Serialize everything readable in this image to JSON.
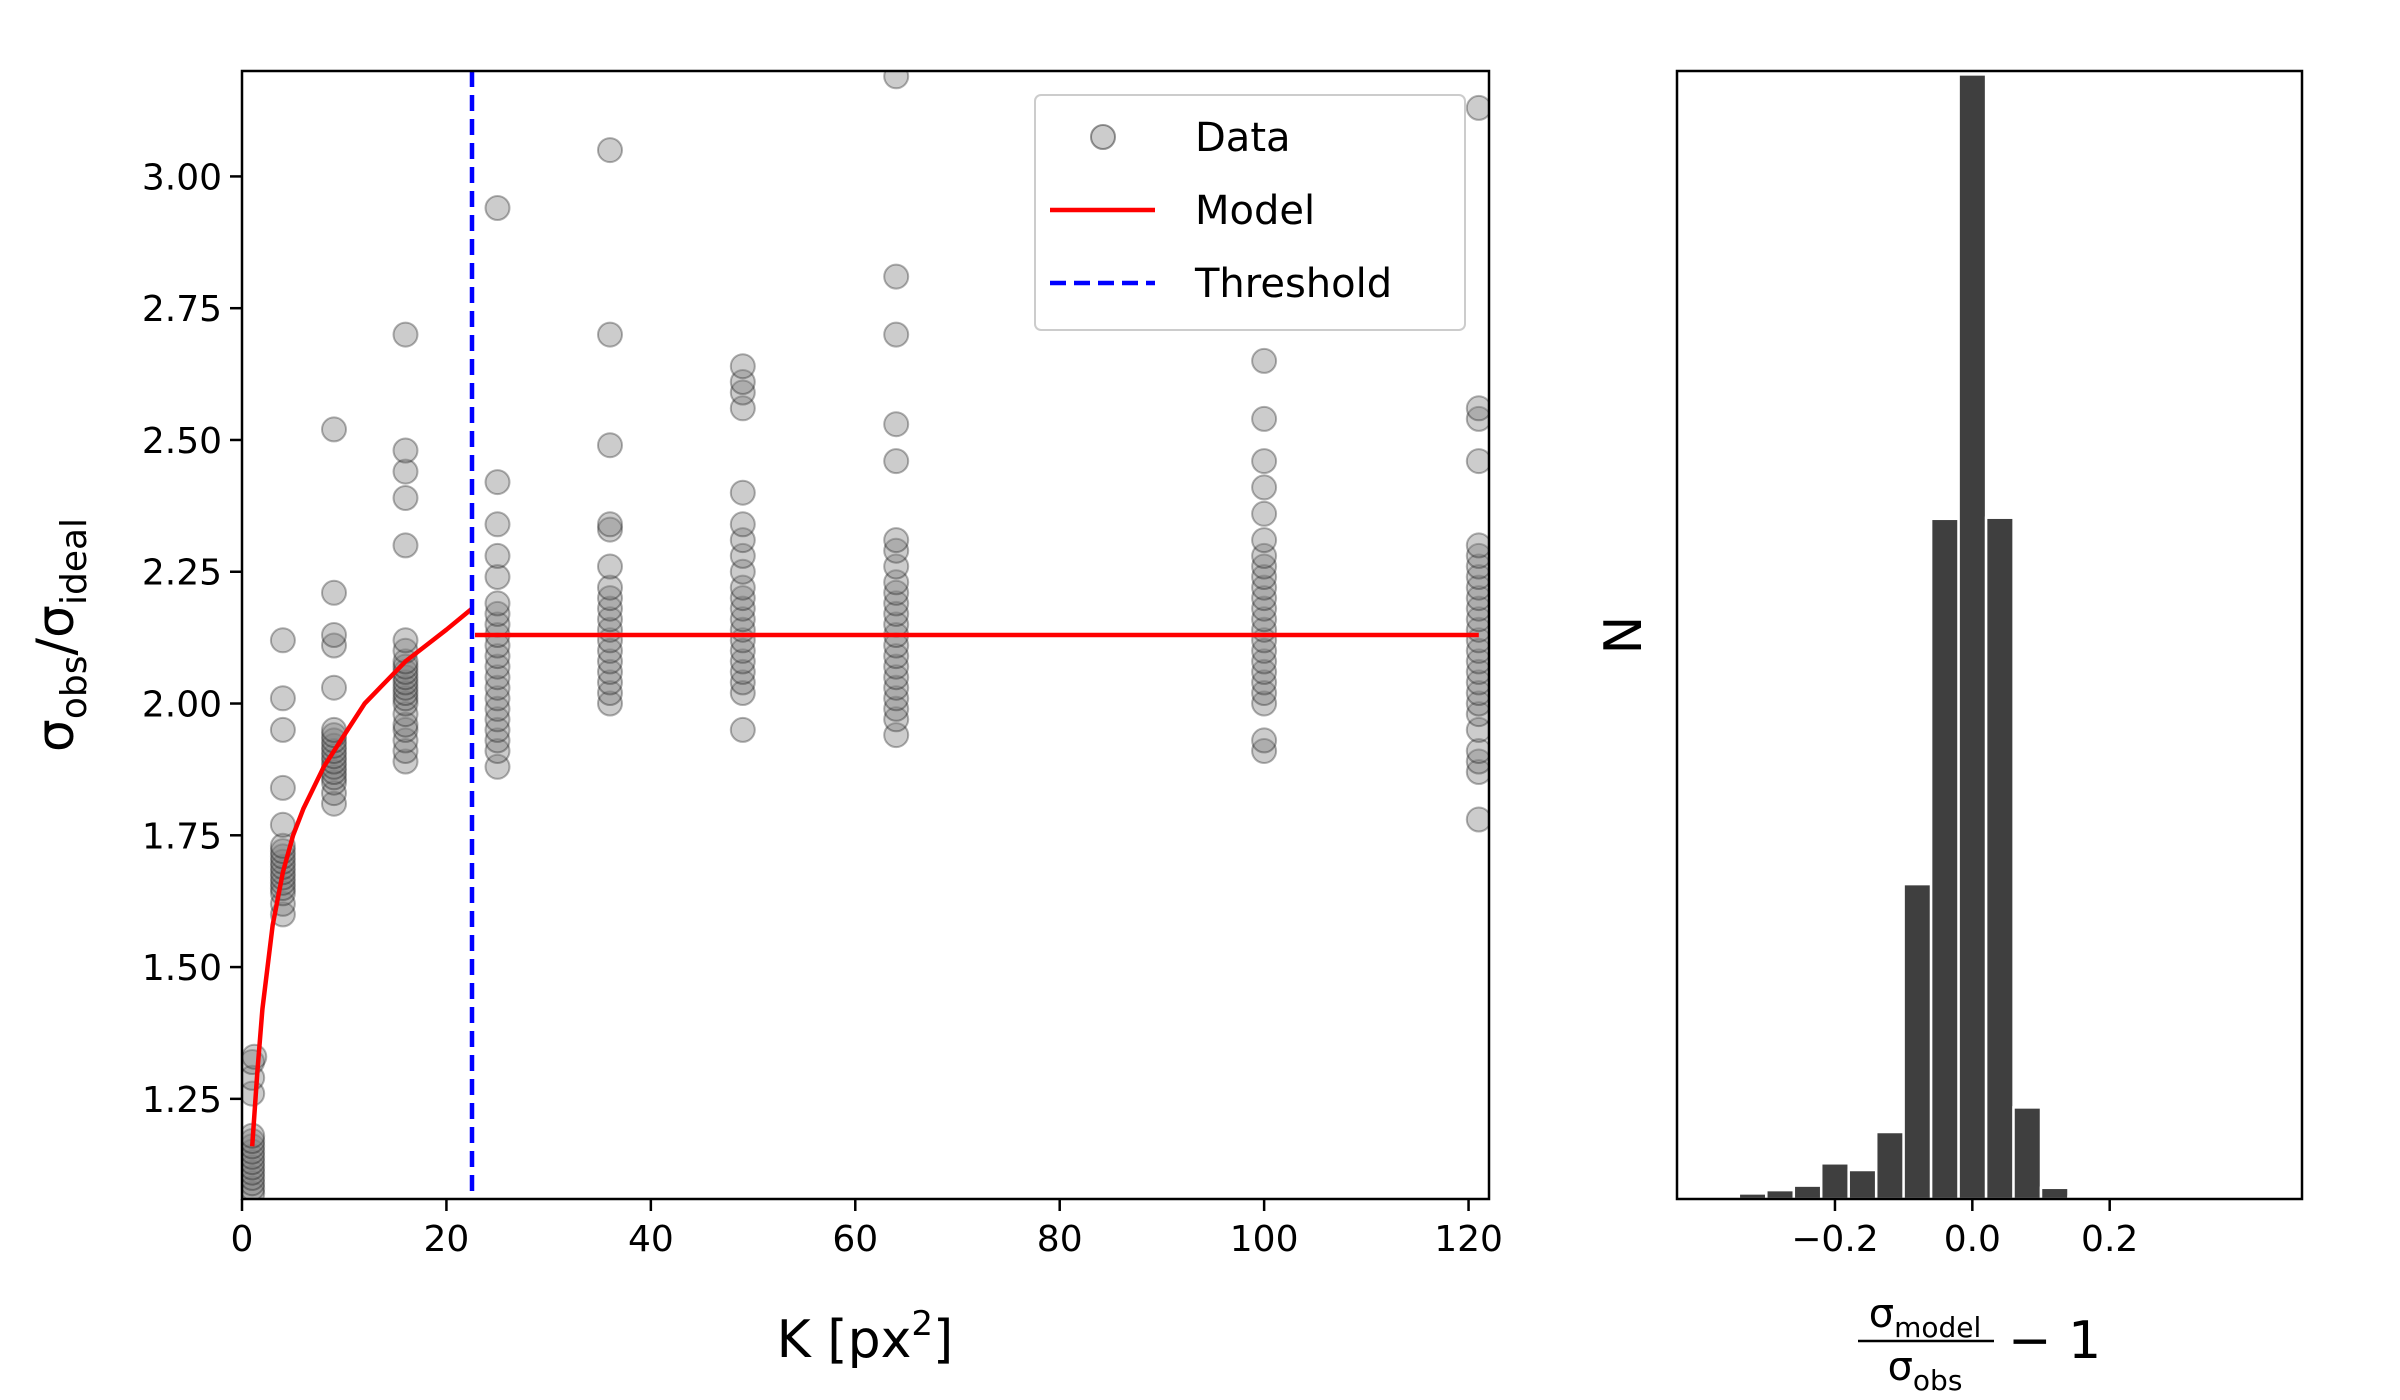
{
  "colors": {
    "data": "#7f7f7f",
    "model": "#ff0000",
    "threshold": "#0000ff",
    "hist": "#3f3f3f"
  },
  "chart_data": [
    {
      "type": "scatter",
      "xlabel_main": "K [px",
      "xlabel_sup": "2",
      "xlabel_close": "]",
      "ylabel_main1": "σ",
      "ylabel_sub1": "obs",
      "ylabel_slash": "/σ",
      "ylabel_sub2": "ideal",
      "xlim": [
        0,
        122
      ],
      "ylim": [
        1.06,
        3.2
      ],
      "x_ticks": [
        0,
        20,
        40,
        60,
        80,
        100,
        120
      ],
      "x_tick_labels": [
        "0",
        "20",
        "40",
        "60",
        "80",
        "100",
        "120"
      ],
      "y_ticks": [
        1.25,
        1.5,
        1.75,
        2.0,
        2.25,
        2.5,
        2.75,
        3.0
      ],
      "y_tick_labels": [
        "1.25",
        "1.50",
        "1.75",
        "2.00",
        "2.25",
        "2.50",
        "2.75",
        "3.00"
      ],
      "legend": {
        "position": "upper right",
        "entries": [
          {
            "label": "Data",
            "kind": "marker"
          },
          {
            "label": "Model",
            "kind": "line"
          },
          {
            "label": "Threshold",
            "kind": "dashed"
          }
        ]
      },
      "series": [
        {
          "name": "Data",
          "kind": "scatter",
          "points": [
            [
              1,
              1.07
            ],
            [
              1,
              1.08
            ],
            [
              1,
              1.09
            ],
            [
              1,
              1.1
            ],
            [
              1,
              1.11
            ],
            [
              1,
              1.12
            ],
            [
              1,
              1.13
            ],
            [
              1,
              1.14
            ],
            [
              1,
              1.15
            ],
            [
              1,
              1.16
            ],
            [
              1,
              1.17
            ],
            [
              1,
              1.18
            ],
            [
              1,
              1.26
            ],
            [
              1,
              1.29
            ],
            [
              1,
              1.32
            ],
            [
              1.2,
              1.33
            ],
            [
              4,
              1.6
            ],
            [
              4,
              1.62
            ],
            [
              4,
              1.64
            ],
            [
              4,
              1.65
            ],
            [
              4,
              1.66
            ],
            [
              4,
              1.67
            ],
            [
              4,
              1.68
            ],
            [
              4,
              1.69
            ],
            [
              4,
              1.7
            ],
            [
              4,
              1.71
            ],
            [
              4,
              1.72
            ],
            [
              4,
              1.73
            ],
            [
              4,
              1.77
            ],
            [
              4,
              1.84
            ],
            [
              4,
              1.95
            ],
            [
              4,
              2.01
            ],
            [
              4,
              2.12
            ],
            [
              9,
              1.81
            ],
            [
              9,
              1.83
            ],
            [
              9,
              1.85
            ],
            [
              9,
              1.86
            ],
            [
              9,
              1.87
            ],
            [
              9,
              1.88
            ],
            [
              9,
              1.89
            ],
            [
              9,
              1.9
            ],
            [
              9,
              1.91
            ],
            [
              9,
              1.92
            ],
            [
              9,
              1.93
            ],
            [
              9,
              1.94
            ],
            [
              9,
              1.95
            ],
            [
              9,
              2.03
            ],
            [
              9,
              2.11
            ],
            [
              9,
              2.13
            ],
            [
              9,
              2.21
            ],
            [
              9,
              2.52
            ],
            [
              16,
              1.89
            ],
            [
              16,
              1.91
            ],
            [
              16,
              1.93
            ],
            [
              16,
              1.95
            ],
            [
              16,
              1.96
            ],
            [
              16,
              1.98
            ],
            [
              16,
              2.0
            ],
            [
              16,
              2.01
            ],
            [
              16,
              2.02
            ],
            [
              16,
              2.03
            ],
            [
              16,
              2.04
            ],
            [
              16,
              2.05
            ],
            [
              16,
              2.06
            ],
            [
              16,
              2.07
            ],
            [
              16,
              2.08
            ],
            [
              16,
              2.1
            ],
            [
              16,
              2.12
            ],
            [
              16,
              2.3
            ],
            [
              16,
              2.39
            ],
            [
              16,
              2.44
            ],
            [
              16,
              2.48
            ],
            [
              16,
              2.7
            ],
            [
              25,
              1.88
            ],
            [
              25,
              1.91
            ],
            [
              25,
              1.93
            ],
            [
              25,
              1.95
            ],
            [
              25,
              1.97
            ],
            [
              25,
              1.99
            ],
            [
              25,
              2.01
            ],
            [
              25,
              2.03
            ],
            [
              25,
              2.05
            ],
            [
              25,
              2.07
            ],
            [
              25,
              2.09
            ],
            [
              25,
              2.11
            ],
            [
              25,
              2.13
            ],
            [
              25,
              2.15
            ],
            [
              25,
              2.17
            ],
            [
              25,
              2.19
            ],
            [
              25,
              2.24
            ],
            [
              25,
              2.28
            ],
            [
              25,
              2.34
            ],
            [
              25,
              2.42
            ],
            [
              25,
              2.94
            ],
            [
              36,
              2.0
            ],
            [
              36,
              2.02
            ],
            [
              36,
              2.04
            ],
            [
              36,
              2.06
            ],
            [
              36,
              2.08
            ],
            [
              36,
              2.1
            ],
            [
              36,
              2.12
            ],
            [
              36,
              2.14
            ],
            [
              36,
              2.16
            ],
            [
              36,
              2.18
            ],
            [
              36,
              2.2
            ],
            [
              36,
              2.22
            ],
            [
              36,
              2.26
            ],
            [
              36,
              2.33
            ],
            [
              36,
              2.34
            ],
            [
              36,
              2.49
            ],
            [
              36,
              2.7
            ],
            [
              36,
              3.05
            ],
            [
              49,
              1.95
            ],
            [
              49,
              2.02
            ],
            [
              49,
              2.04
            ],
            [
              49,
              2.06
            ],
            [
              49,
              2.08
            ],
            [
              49,
              2.1
            ],
            [
              49,
              2.12
            ],
            [
              49,
              2.14
            ],
            [
              49,
              2.16
            ],
            [
              49,
              2.18
            ],
            [
              49,
              2.2
            ],
            [
              49,
              2.22
            ],
            [
              49,
              2.25
            ],
            [
              49,
              2.28
            ],
            [
              49,
              2.31
            ],
            [
              49,
              2.34
            ],
            [
              49,
              2.4
            ],
            [
              49,
              2.56
            ],
            [
              49,
              2.59
            ],
            [
              49,
              2.61
            ],
            [
              49,
              2.64
            ],
            [
              64,
              1.94
            ],
            [
              64,
              1.97
            ],
            [
              64,
              1.99
            ],
            [
              64,
              2.01
            ],
            [
              64,
              2.03
            ],
            [
              64,
              2.05
            ],
            [
              64,
              2.07
            ],
            [
              64,
              2.09
            ],
            [
              64,
              2.11
            ],
            [
              64,
              2.13
            ],
            [
              64,
              2.15
            ],
            [
              64,
              2.17
            ],
            [
              64,
              2.19
            ],
            [
              64,
              2.21
            ],
            [
              64,
              2.23
            ],
            [
              64,
              2.26
            ],
            [
              64,
              2.29
            ],
            [
              64,
              2.31
            ],
            [
              64,
              2.46
            ],
            [
              64,
              2.53
            ],
            [
              64,
              2.7
            ],
            [
              64,
              2.81
            ],
            [
              64,
              3.19
            ],
            [
              100,
              1.91
            ],
            [
              100,
              1.93
            ],
            [
              100,
              2.0
            ],
            [
              100,
              2.02
            ],
            [
              100,
              2.04
            ],
            [
              100,
              2.06
            ],
            [
              100,
              2.08
            ],
            [
              100,
              2.1
            ],
            [
              100,
              2.12
            ],
            [
              100,
              2.14
            ],
            [
              100,
              2.16
            ],
            [
              100,
              2.18
            ],
            [
              100,
              2.2
            ],
            [
              100,
              2.22
            ],
            [
              100,
              2.24
            ],
            [
              100,
              2.26
            ],
            [
              100,
              2.28
            ],
            [
              100,
              2.31
            ],
            [
              100,
              2.36
            ],
            [
              100,
              2.41
            ],
            [
              100,
              2.46
            ],
            [
              100,
              2.54
            ],
            [
              100,
              2.65
            ],
            [
              121,
              1.78
            ],
            [
              121,
              1.87
            ],
            [
              121,
              1.89
            ],
            [
              121,
              1.91
            ],
            [
              121,
              1.95
            ],
            [
              121,
              1.98
            ],
            [
              121,
              2.0
            ],
            [
              121,
              2.02
            ],
            [
              121,
              2.04
            ],
            [
              121,
              2.06
            ],
            [
              121,
              2.08
            ],
            [
              121,
              2.1
            ],
            [
              121,
              2.12
            ],
            [
              121,
              2.14
            ],
            [
              121,
              2.16
            ],
            [
              121,
              2.18
            ],
            [
              121,
              2.2
            ],
            [
              121,
              2.22
            ],
            [
              121,
              2.24
            ],
            [
              121,
              2.26
            ],
            [
              121,
              2.28
            ],
            [
              121,
              2.3
            ],
            [
              121,
              2.46
            ],
            [
              121,
              2.54
            ],
            [
              121,
              2.56
            ],
            [
              121,
              3.13
            ]
          ]
        },
        {
          "name": "Model",
          "kind": "line",
          "segments": [
            [
              [
                1,
                1.16
              ],
              [
                1.5,
                1.3
              ],
              [
                2,
                1.42
              ],
              [
                3,
                1.58
              ],
              [
                4,
                1.68
              ],
              [
                5,
                1.75
              ],
              [
                6,
                1.8
              ],
              [
                8,
                1.88
              ],
              [
                10,
                1.94
              ],
              [
                12,
                2.0
              ],
              [
                14,
                2.04
              ],
              [
                16,
                2.08
              ],
              [
                18,
                2.11
              ],
              [
                20,
                2.14
              ],
              [
                22.5,
                2.18
              ]
            ],
            [
              [
                22.8,
                2.13
              ],
              [
                121,
                2.13
              ]
            ]
          ]
        },
        {
          "name": "Threshold",
          "kind": "vline",
          "x": 22.5
        }
      ]
    },
    {
      "type": "bar",
      "subtype": "histogram",
      "ylabel": "N",
      "xlabel_num_main": "σ",
      "xlabel_num_sub": "model",
      "xlabel_den_main": "σ",
      "xlabel_den_sub": "obs",
      "xlabel_suffix": "− 1",
      "xlim": [
        -0.43,
        0.48
      ],
      "ylim": [
        0,
        1010
      ],
      "x_ticks": [
        -0.2,
        0.0,
        0.2
      ],
      "x_tick_labels": [
        "−0.2",
        "0.0",
        "0.2"
      ],
      "bin_width": 0.04,
      "bins": [
        {
          "left": -0.38,
          "count": 2
        },
        {
          "left": -0.34,
          "count": 5
        },
        {
          "left": -0.3,
          "count": 8
        },
        {
          "left": -0.26,
          "count": 12
        },
        {
          "left": -0.22,
          "count": 32
        },
        {
          "left": -0.18,
          "count": 26
        },
        {
          "left": -0.14,
          "count": 60
        },
        {
          "left": -0.1,
          "count": 282
        },
        {
          "left": -0.06,
          "count": 609
        },
        {
          "left": -0.02,
          "count": 1007
        },
        {
          "left": 0.02,
          "count": 610
        },
        {
          "left": 0.06,
          "count": 82
        },
        {
          "left": 0.1,
          "count": 10
        },
        {
          "left": 0.14,
          "count": 2
        }
      ]
    }
  ]
}
